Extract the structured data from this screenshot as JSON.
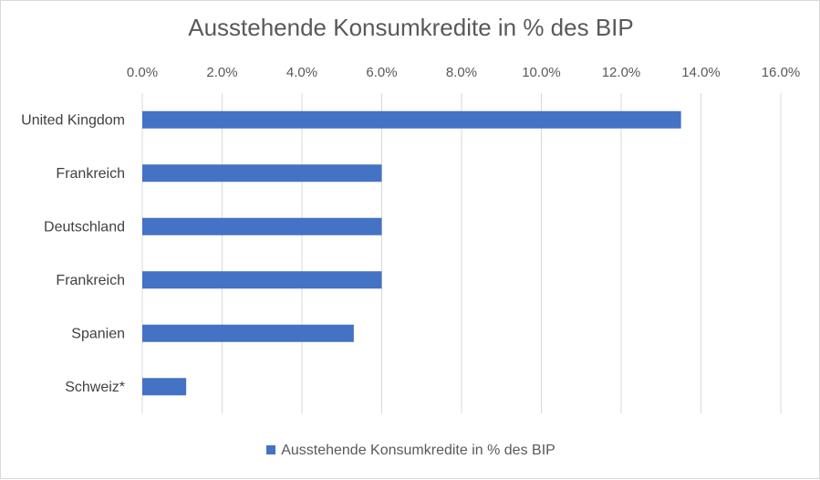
{
  "chart_data": {
    "type": "bar",
    "orientation": "horizontal",
    "title": "Ausstehende Konsumkredite in % des BIP",
    "categories": [
      "United Kingdom",
      "Frankreich",
      "Deutschland",
      "Frankreich",
      "Spanien",
      "Schweiz*"
    ],
    "series": [
      {
        "name": "Ausstehende Konsumkredite in % des BIP",
        "values": [
          13.5,
          6.0,
          6.0,
          6.0,
          5.3,
          1.1
        ],
        "color": "#4472c4"
      }
    ],
    "x_axis": {
      "position": "top",
      "min": 0,
      "max": 16,
      "step": 2,
      "tick_labels": [
        "0.0%",
        "2.0%",
        "4.0%",
        "6.0%",
        "8.0%",
        "10.0%",
        "12.0%",
        "14.0%",
        "16.0%"
      ]
    },
    "grid": true,
    "legend": "bottom"
  }
}
